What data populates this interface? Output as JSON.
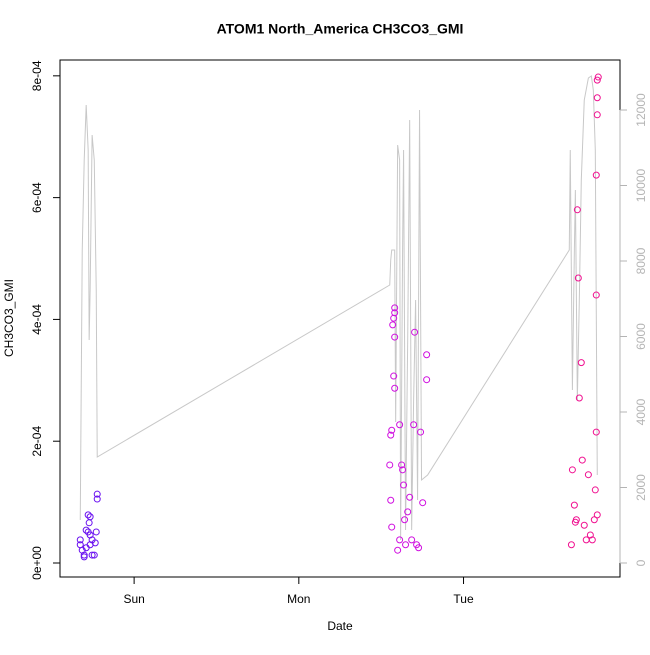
{
  "chart_data": {
    "type": "scatter",
    "title": "ATOM1 North_America CH3CO3_GMI",
    "xlabel": "Date",
    "ylabel": "CH3CO3_GMI",
    "xlim": [
      0.55,
      3.95
    ],
    "xticks": [
      {
        "value": 1,
        "label": "Sun"
      },
      {
        "value": 2,
        "label": "Mon"
      },
      {
        "value": 3,
        "label": "Tue"
      }
    ],
    "ylim": [
      -2.3e-05,
      0.000826
    ],
    "yticks": [
      {
        "value": 0,
        "label": "0e+00"
      },
      {
        "value": 0.0002,
        "label": "2e-04"
      },
      {
        "value": 0.0004,
        "label": "4e-04"
      },
      {
        "value": 0.0006,
        "label": "6e-04"
      },
      {
        "value": 0.0008,
        "label": "8e-04"
      }
    ],
    "y2lim": [
      -371,
      13325
    ],
    "y2ticks": [
      0,
      2000,
      4000,
      6000,
      8000,
      10000,
      12000
    ],
    "y2color": "#b4b4b4",
    "series": [
      {
        "color": "#6a10f0",
        "x": [
          0.673,
          0.673,
          0.685,
          0.697,
          0.709,
          0.721,
          0.733,
          0.721,
          0.733,
          0.745,
          0.745,
          0.758,
          0.764,
          0.77,
          0.776,
          0.776,
          0.709,
          0.697,
          0.733,
          0.727
        ],
        "values": [
          3.8e-05,
          3e-05,
          2.1e-05,
          1.3e-05,
          5.4e-05,
          7.9e-05,
          7.6e-05,
          5.1e-05,
          4.6e-05,
          3.8e-05,
          1.3e-05,
          1.3e-05,
          3.3e-05,
          5.1e-05,
          0.000113,
          0.000105,
          2.5e-05,
          1e-05,
          3e-05,
          6.6e-05
        ]
      },
      {
        "color": "#d010e0",
        "x": [
          2.582,
          2.582,
          2.576,
          2.57,
          2.582,
          2.564,
          2.558,
          2.552,
          2.558,
          2.564,
          2.576,
          2.582,
          2.6,
          2.612,
          2.624,
          2.63,
          2.636,
          2.648,
          2.661,
          2.673,
          2.685,
          2.697,
          2.703,
          2.715,
          2.727,
          2.739,
          2.752,
          2.776,
          2.776,
          2.642,
          2.612
        ],
        "values": [
          0.000419,
          0.000411,
          0.000402,
          0.000391,
          0.000371,
          0.000218,
          0.00021,
          0.000161,
          0.000103,
          5.9e-05,
          0.000307,
          0.000287,
          2.1e-05,
          3.8e-05,
          0.000161,
          0.000153,
          0.000128,
          3e-05,
          8.4e-05,
          0.000108,
          3.8e-05,
          0.000227,
          0.000379,
          3e-05,
          2.5e-05,
          0.000215,
          9.9e-05,
          0.000301,
          0.000342,
          7.1e-05,
          0.000227
        ]
      },
      {
        "color": "#f01090",
        "x": [
          3.655,
          3.661,
          3.673,
          3.685,
          3.691,
          3.697,
          3.703,
          3.715,
          3.721,
          3.733,
          3.745,
          3.758,
          3.77,
          3.782,
          3.794,
          3.8,
          3.806,
          3.806,
          3.806,
          3.812,
          3.812,
          3.812,
          3.818,
          3.812,
          3.679
        ],
        "values": [
          3e-05,
          0.000153,
          9.5e-05,
          7.1e-05,
          0.00058,
          0.000468,
          0.000271,
          0.000329,
          0.000169,
          6.2e-05,
          3.8e-05,
          0.000145,
          4.6e-05,
          3.8e-05,
          7.1e-05,
          0.00012,
          0.000215,
          0.00044,
          0.000637,
          0.000736,
          0.000764,
          0.000793,
          0.000798,
          7.9e-05,
          6.7e-05
        ]
      },
      {
        "type": "line",
        "axis": "y2",
        "color": "#c8c8c8",
        "x": [
          0.673,
          0.685,
          0.697,
          0.709,
          0.721,
          0.727,
          0.733,
          0.745,
          0.758,
          0.77,
          0.776,
          2.552,
          2.558,
          2.564,
          2.582,
          2.588,
          2.6,
          2.612,
          2.618,
          2.63,
          2.636,
          2.648,
          2.661,
          2.673,
          2.685,
          2.697,
          2.709,
          2.721,
          2.733,
          2.745,
          2.782,
          3.642,
          3.648,
          3.661,
          3.673,
          3.679,
          3.691,
          3.703,
          3.715,
          3.733,
          3.758,
          3.776,
          3.788,
          3.8,
          3.812
        ],
        "values": [
          1139,
          8291,
          10675,
          12133,
          10940,
          5907,
          7232,
          11338,
          10675,
          7232,
          2808,
          7364,
          8026,
          8291,
          8291,
          3735,
          11073,
          10675,
          609,
          8291,
          10940,
          874,
          5907,
          11735,
          874,
          4318,
          6967,
          1669,
          12000,
          2199,
          2331,
          8291,
          10940,
          4583,
          8291,
          9881,
          4318,
          6967,
          10146,
          12265,
          12848,
          12901,
          12530,
          10940,
          2331
        ]
      }
    ]
  }
}
